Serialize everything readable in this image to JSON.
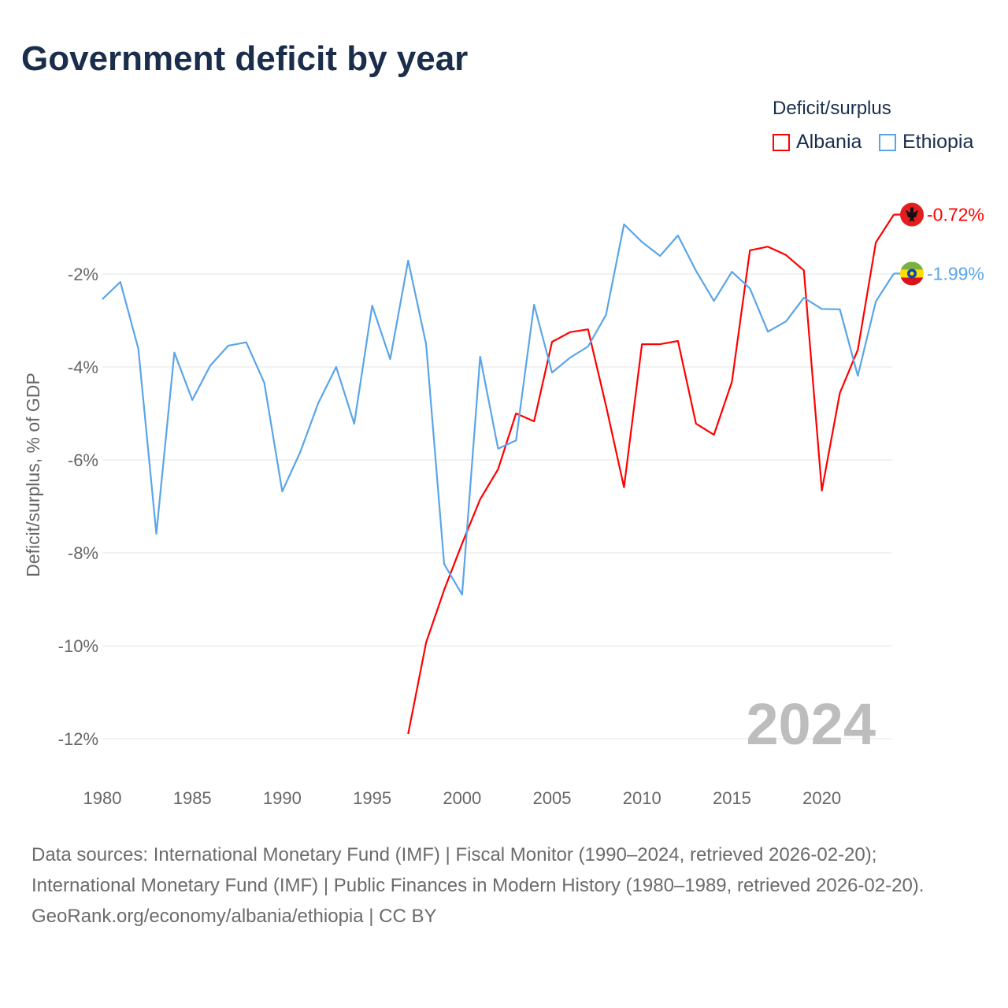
{
  "chart_data": {
    "type": "line",
    "title": "Government deficit by year",
    "xlabel": "",
    "ylabel": "Deficit/surplus, % of GDP",
    "legend_title": "Deficit/surplus",
    "legend_position": "top-right",
    "xlim": [
      1980,
      2024
    ],
    "ylim": [
      -12.9,
      0
    ],
    "x_ticks": [
      1980,
      1985,
      1990,
      1995,
      2000,
      2005,
      2010,
      2015,
      2020
    ],
    "x_tick_labels": [
      "1980",
      "1985",
      "1990",
      "1995",
      "2000",
      "2005",
      "2010",
      "2015",
      "2020"
    ],
    "y_ticks": [
      -2,
      -4,
      -6,
      -8,
      -10,
      -12
    ],
    "y_tick_labels": [
      "-2%",
      "-4%",
      "-6%",
      "-8%",
      "-10%",
      "-12%"
    ],
    "grid": true,
    "year_watermark": "2024",
    "series": [
      {
        "name": "Albania",
        "color": "#ff0000",
        "end_label": "-0.72%",
        "flag": "albania-flag",
        "x": [
          1997,
          1998,
          1999,
          2000,
          2001,
          2002,
          2003,
          2004,
          2005,
          2006,
          2007,
          2008,
          2009,
          2010,
          2011,
          2012,
          2013,
          2014,
          2015,
          2016,
          2017,
          2018,
          2019,
          2020,
          2021,
          2022,
          2023,
          2024
        ],
        "values": [
          -11.9,
          -9.93,
          -8.8,
          -7.8,
          -6.85,
          -6.2,
          -5.0,
          -5.17,
          -3.46,
          -3.25,
          -3.19,
          -4.83,
          -6.59,
          -3.51,
          -3.51,
          -3.44,
          -5.22,
          -5.46,
          -4.32,
          -1.49,
          -1.41,
          -1.59,
          -1.92,
          -6.66,
          -4.56,
          -3.63,
          -1.32,
          -0.72
        ]
      },
      {
        "name": "Ethiopia",
        "color": "#5aa5e8",
        "end_label": "-1.99%",
        "flag": "ethiopia-flag",
        "x": [
          1980,
          1981,
          1982,
          1983,
          1984,
          1985,
          1986,
          1987,
          1988,
          1989,
          1990,
          1991,
          1992,
          1993,
          1994,
          1995,
          1996,
          1997,
          1998,
          1999,
          2000,
          2001,
          2002,
          2003,
          2004,
          2005,
          2006,
          2007,
          2008,
          2009,
          2010,
          2011,
          2012,
          2013,
          2014,
          2015,
          2016,
          2017,
          2018,
          2019,
          2020,
          2021,
          2022,
          2023,
          2024
        ],
        "values": [
          -2.54,
          -2.17,
          -3.61,
          -7.59,
          -3.69,
          -4.71,
          -3.97,
          -3.54,
          -3.47,
          -4.34,
          -6.68,
          -5.83,
          -4.78,
          -4.0,
          -5.22,
          -2.68,
          -3.83,
          -1.71,
          -3.51,
          -8.24,
          -8.9,
          -3.78,
          -5.76,
          -5.58,
          -2.66,
          -4.12,
          -3.8,
          -3.56,
          -2.88,
          -0.93,
          -1.31,
          -1.61,
          -1.17,
          -1.93,
          -2.58,
          -1.95,
          -2.31,
          -3.24,
          -3.02,
          -2.51,
          -2.75,
          -2.76,
          -4.19,
          -2.59,
          -1.99
        ]
      }
    ]
  },
  "footer": {
    "sources": "Data sources: International Monetary Fund (IMF) | Fiscal Monitor (1990–2024, retrieved 2026-02-20); International Monetary Fund (IMF) | Public Finances in Modern History (1980–1989, retrieved 2026-02-20).",
    "credit": "GeoRank.org/economy/albania/ethiopia | CC BY"
  }
}
